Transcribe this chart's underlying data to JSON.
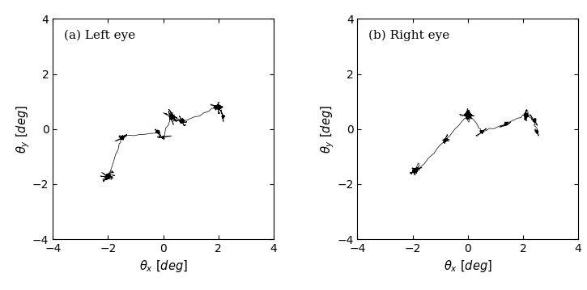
{
  "subplot_labels": [
    "(a) Left eye",
    "(b) Right eye"
  ],
  "xlabel": "$\\theta_x\\ [deg]$",
  "ylabel": "$\\theta_y\\ [deg]$",
  "xlim": [
    -4,
    4
  ],
  "ylim": [
    -4,
    4
  ],
  "xticks": [
    -4,
    -2,
    0,
    2,
    4
  ],
  "yticks": [
    -4,
    -2,
    0,
    2,
    4
  ],
  "line_color": "#000000",
  "line_width": 0.5,
  "background_color": "#ffffff",
  "figsize": [
    7.25,
    3.59
  ],
  "dpi": 100
}
